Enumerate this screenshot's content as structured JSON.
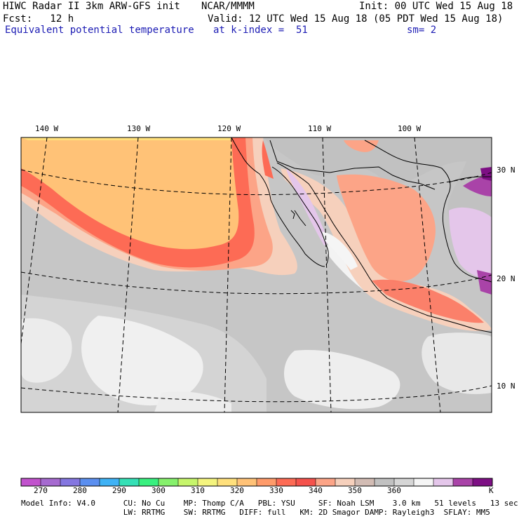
{
  "header": {
    "model": "HIWC Radar II 3km ARW-GFS init",
    "org": "NCAR/MMMM",
    "init": "Init: 00 UTC Wed 15 Aug 18",
    "fcst": "Fcst:   12 h",
    "valid": "Valid: 12 UTC Wed 15 Aug 18 (05 PDT Wed 15 Aug 18)",
    "field": "Equivalent potential temperature",
    "kindex": "at k-index =  51",
    "smooth": "sm= 2"
  },
  "map": {
    "lon_labels": [
      "140 W",
      "130 W",
      "120 W",
      "110 W",
      "100 W"
    ],
    "lat_labels": [
      "30 N",
      "20 N",
      "10 N"
    ]
  },
  "colorbar": {
    "unit": "K",
    "ticks": [
      "270",
      "280",
      "290",
      "300",
      "310",
      "320",
      "330",
      "340",
      "350",
      "360"
    ],
    "colors": [
      "#c152cd",
      "#a66ad0",
      "#8476e0",
      "#5b8ff0",
      "#3fb2f5",
      "#35e0b6",
      "#38f07f",
      "#86f16c",
      "#c6f56b",
      "#f4f47e",
      "#ffe07c",
      "#ffc277",
      "#ff9b6a",
      "#fd6b55",
      "#f5524c",
      "#fca487",
      "#f6d0bc",
      "#d2bcb4",
      "#c1c1c1",
      "#d6d6d6",
      "#f5f5f5",
      "#e4c6ea",
      "#a943a8",
      "#7d0f84"
    ]
  },
  "footer": {
    "line1": "Model Info: V4.0      CU: No Cu    MP: Thomp C/A   PBL: YSU     SF: Noah LSM    3.0 km   51 levels   13 sec",
    "line2": "                      LW: RRTMG    SW: RRTMG   DIFF: full   KM: 2D Smagor DAMP: Rayleigh3  SFLAY: MM5"
  }
}
